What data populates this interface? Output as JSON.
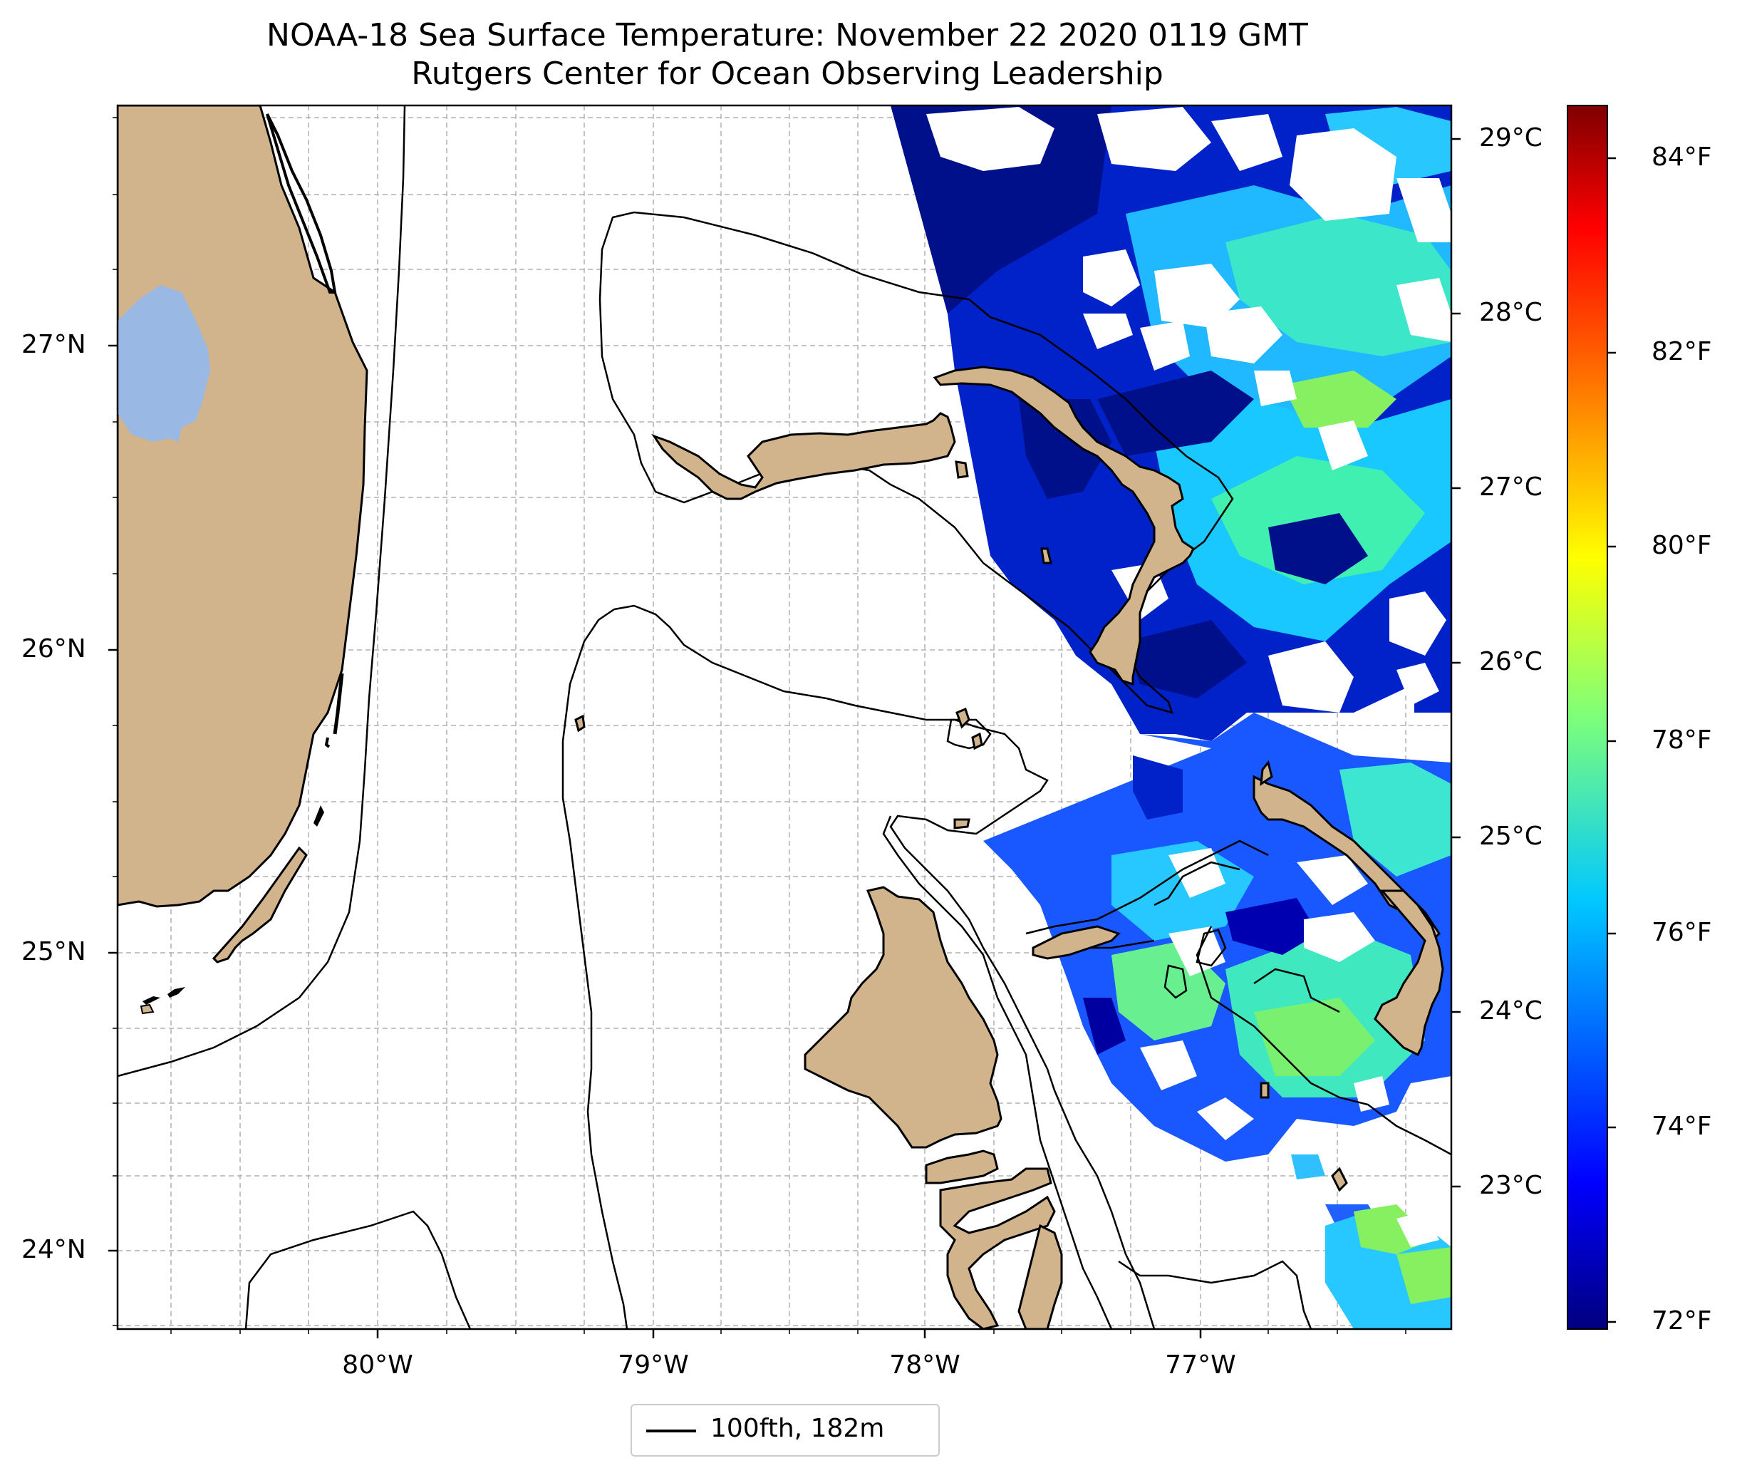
{
  "title": {
    "line1": "NOAA-18 Sea Surface Temperature: November 22 2020 0119 GMT",
    "line2": "Rutgers Center for Ocean Observing Leadership"
  },
  "axes": {
    "lat_labels": [
      "27°N",
      "26°N",
      "25°N",
      "24°N"
    ],
    "lon_labels": [
      "80°W",
      "79°W",
      "78°W",
      "77°W"
    ]
  },
  "colorbar": {
    "celsius_labels": [
      "29°C",
      "28°C",
      "27°C",
      "26°C",
      "25°C",
      "24°C",
      "23°C"
    ],
    "fahrenheit_labels": [
      "84°F",
      "82°F",
      "80°F",
      "78°F",
      "76°F",
      "74°F",
      "72°F"
    ],
    "colormap": "jet",
    "range_f": [
      71.9,
      84.6
    ]
  },
  "legend": {
    "label": "100fth, 182m"
  },
  "colors": {
    "land": "#d2b48c",
    "lake": "#9ab8e4",
    "contour": "#000000",
    "grid": "#b0b0b0"
  }
}
